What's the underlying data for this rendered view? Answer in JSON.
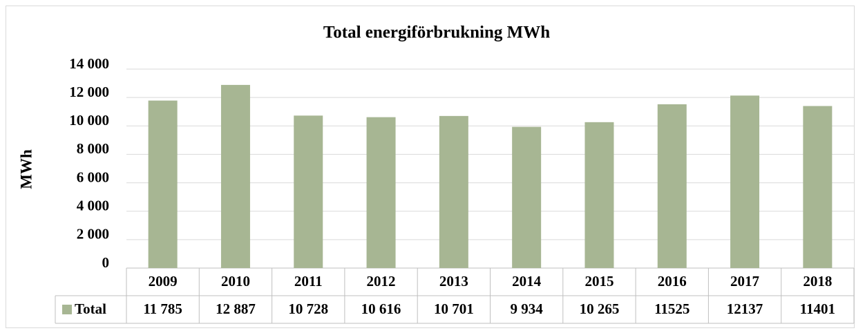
{
  "chart_data": {
    "type": "bar",
    "title": "Total energiförbrukning MWh",
    "y_label": "MWh",
    "categories": [
      "2009",
      "2010",
      "2011",
      "2012",
      "2013",
      "2014",
      "2015",
      "2016",
      "2017",
      "2018"
    ],
    "series": [
      {
        "name": "Total",
        "color": "#a7b693",
        "values": [
          11785,
          12887,
          10728,
          10616,
          10701,
          9934,
          10265,
          11525,
          12137,
          11401
        ],
        "value_labels": [
          "11 785",
          "12 887",
          "10 728",
          "10 616",
          "10 701",
          "9 934",
          "10 265",
          "11525",
          "12137",
          "11401"
        ]
      }
    ],
    "ylim": [
      0,
      14000
    ],
    "yticks": [
      0,
      {
        "value": 2000,
        "label": "2 000"
      },
      {
        "value": 4000,
        "label": "4 000"
      },
      {
        "value": 6000,
        "label": "6 000"
      },
      {
        "value": 8000,
        "label": "8 000"
      },
      {
        "value": 10000,
        "label": "10 000"
      },
      {
        "value": 12000,
        "label": "12 000"
      },
      {
        "value": 14000,
        "label": "14 000"
      }
    ],
    "grid": true
  }
}
